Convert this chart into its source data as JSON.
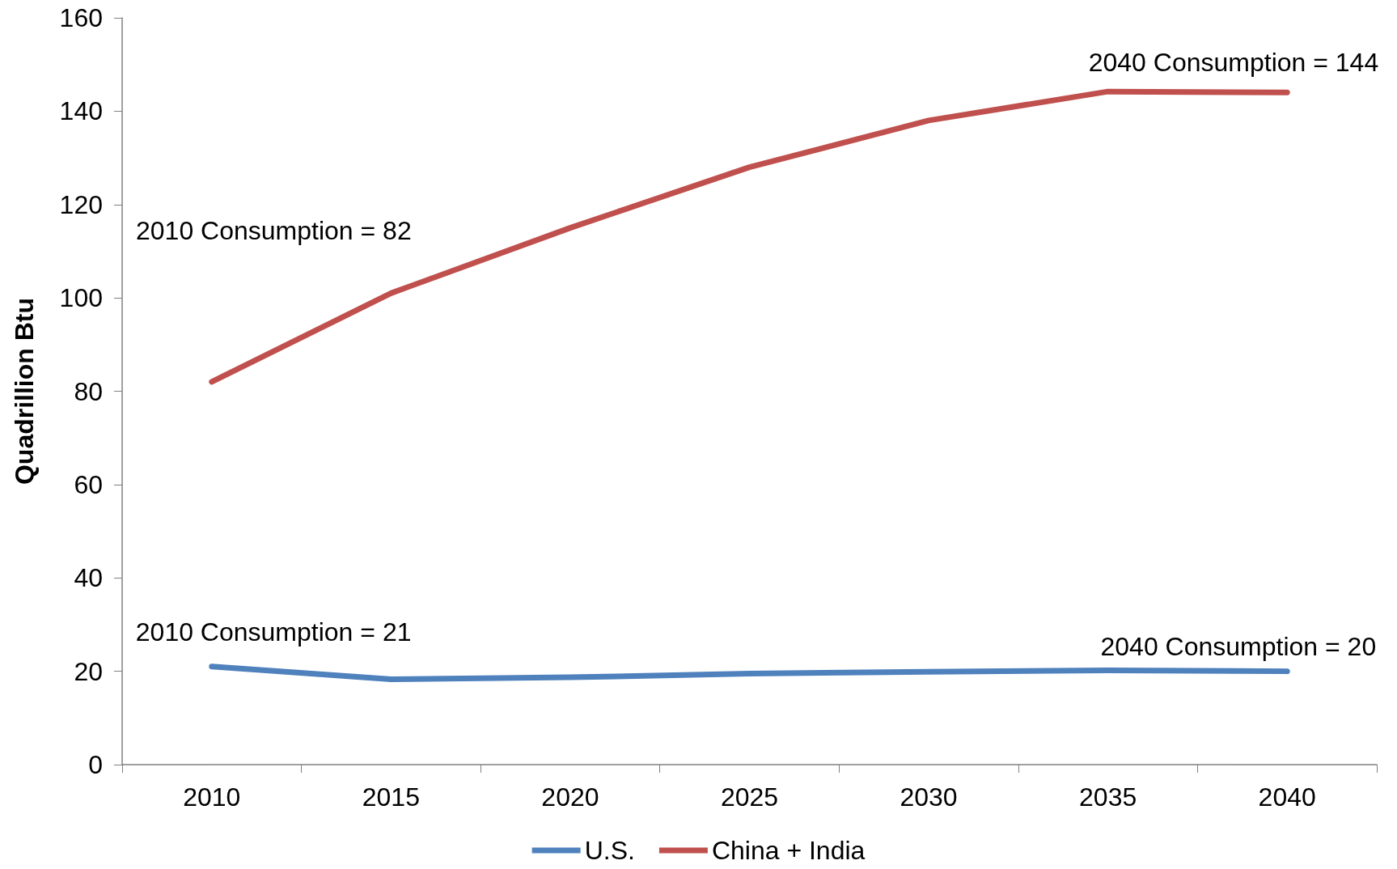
{
  "chart_data": {
    "type": "line",
    "ylabel": "Quadrillion Btu",
    "categories": [
      "2010",
      "2015",
      "2020",
      "2025",
      "2030",
      "2035",
      "2040"
    ],
    "series": [
      {
        "name": "U.S.",
        "color": "#4f81bd",
        "values": [
          21,
          18.3,
          18.7,
          19.5,
          19.9,
          20.2,
          20
        ]
      },
      {
        "name": "China + India",
        "color": "#c0504d",
        "values": [
          82,
          101,
          115,
          128,
          138,
          144.2,
          144
        ]
      }
    ],
    "ylim": [
      0,
      160
    ],
    "yticks": [
      0,
      20,
      40,
      60,
      80,
      100,
      120,
      140,
      160
    ],
    "annotations": [
      {
        "text": "2040 Consumption = 144",
        "x": "2040",
        "y": 144
      },
      "2010 Consumption = 82",
      {
        "text": "2010 Consumption = 21",
        "x": "2010",
        "y": 21
      },
      {
        "text": "2040 Consumption = 20",
        "x": "2040",
        "y": 20
      }
    ],
    "grid": false,
    "legend": "bottom",
    "marker": "none",
    "line_style": "solid"
  }
}
